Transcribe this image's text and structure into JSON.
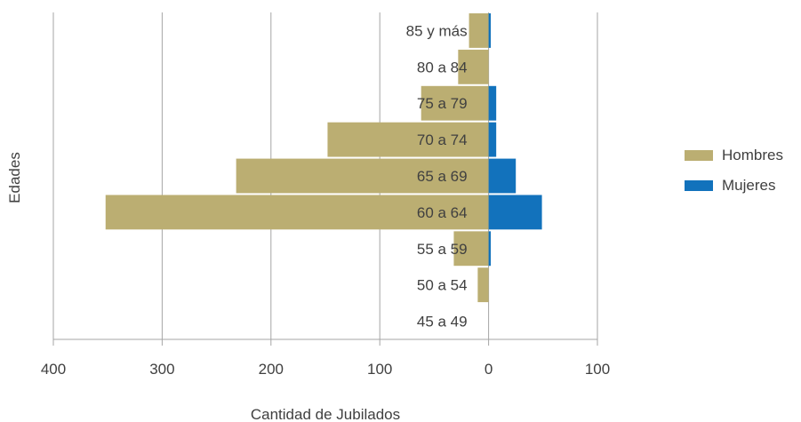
{
  "chart_data": {
    "type": "bar",
    "orientation": "horizontal-population-pyramid",
    "categories": [
      "85 y más",
      "80 a 84",
      "75 a 79",
      "70 a 74",
      "65 a 69",
      "60 a 64",
      "55 a 59",
      "50 a 54",
      "45 a 49"
    ],
    "series": [
      {
        "name": "Hombres",
        "color": "#bbae72",
        "values": [
          18,
          28,
          62,
          148,
          232,
          352,
          32,
          10,
          0
        ]
      },
      {
        "name": "Mujeres",
        "color": "#1272bc",
        "values": [
          2,
          0,
          7,
          7,
          25,
          49,
          2,
          0,
          0
        ]
      }
    ],
    "xlim": [
      -400,
      100
    ],
    "x_ticks": [
      -400,
      -300,
      -200,
      -100,
      0,
      100
    ],
    "x_tick_labels": [
      "400",
      "300",
      "200",
      "100",
      "0",
      "100"
    ],
    "xlabel": "Cantidad de Jubilados",
    "ylabel": "Edades",
    "grid": "vertical",
    "legend_position": "right"
  }
}
